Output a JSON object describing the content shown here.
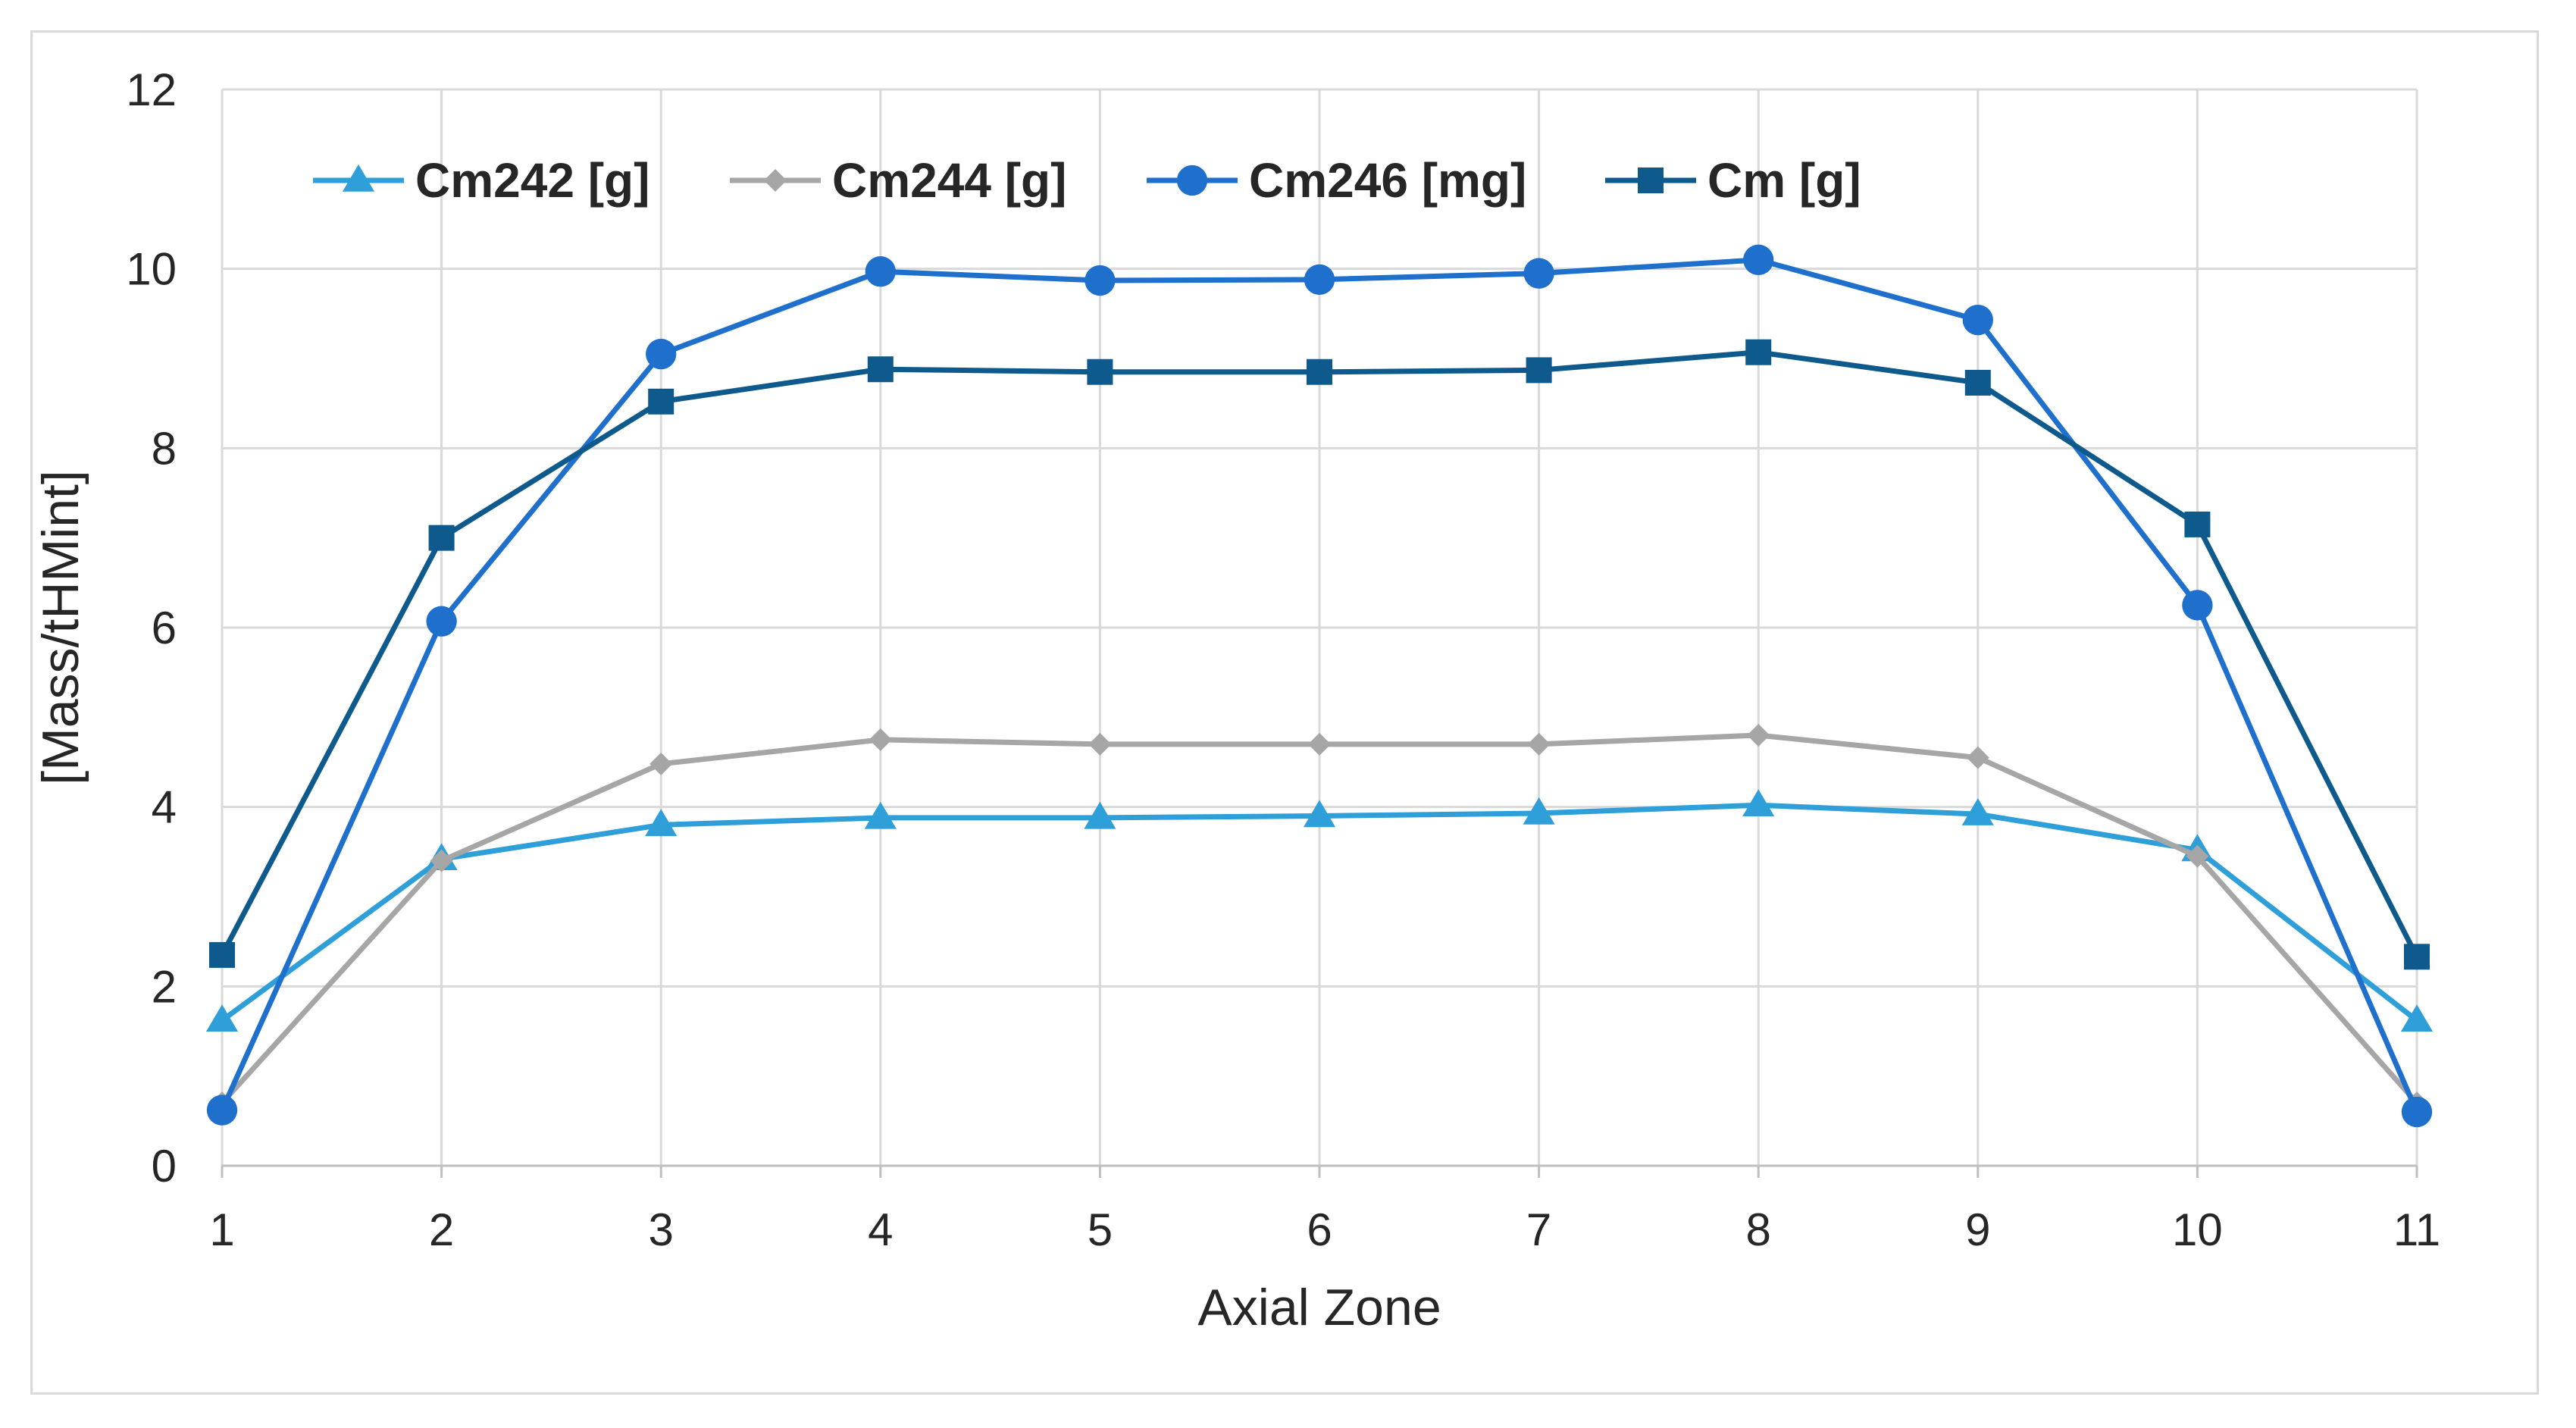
{
  "chart_data": {
    "type": "line",
    "title": "",
    "xlabel": "Axial Zone",
    "ylabel": "[Mass/tHMint]",
    "x": [
      1,
      2,
      3,
      4,
      5,
      6,
      7,
      8,
      9,
      10,
      11
    ],
    "xticks": [
      "1",
      "2",
      "3",
      "4",
      "5",
      "6",
      "7",
      "8",
      "9",
      "10",
      "11"
    ],
    "ylim": [
      0,
      12
    ],
    "yticks": [
      0,
      2,
      4,
      6,
      8,
      10,
      12
    ],
    "grid": true,
    "legend_position": "top",
    "series": [
      {
        "name": "Cm242 [g]",
        "color": "#2e9fd8",
        "marker": "triangle",
        "values": [
          1.62,
          3.42,
          3.8,
          3.88,
          3.88,
          3.9,
          3.93,
          4.02,
          3.92,
          3.52,
          1.62
        ]
      },
      {
        "name": "Cm244 [g]",
        "color": "#a6a6a6",
        "marker": "diamond",
        "values": [
          0.7,
          3.4,
          4.48,
          4.75,
          4.7,
          4.7,
          4.7,
          4.8,
          4.55,
          3.45,
          0.7
        ]
      },
      {
        "name": "Cm246 [mg]",
        "color": "#1f6fcc",
        "marker": "circle",
        "values": [
          0.62,
          6.07,
          9.05,
          9.97,
          9.87,
          9.88,
          9.95,
          10.1,
          9.43,
          6.25,
          0.6
        ]
      },
      {
        "name": "Cm [g]",
        "color": "#0e5a8c",
        "marker": "square",
        "values": [
          2.35,
          7.0,
          8.52,
          8.88,
          8.85,
          8.85,
          8.87,
          9.07,
          8.73,
          7.15,
          2.33
        ]
      }
    ]
  }
}
